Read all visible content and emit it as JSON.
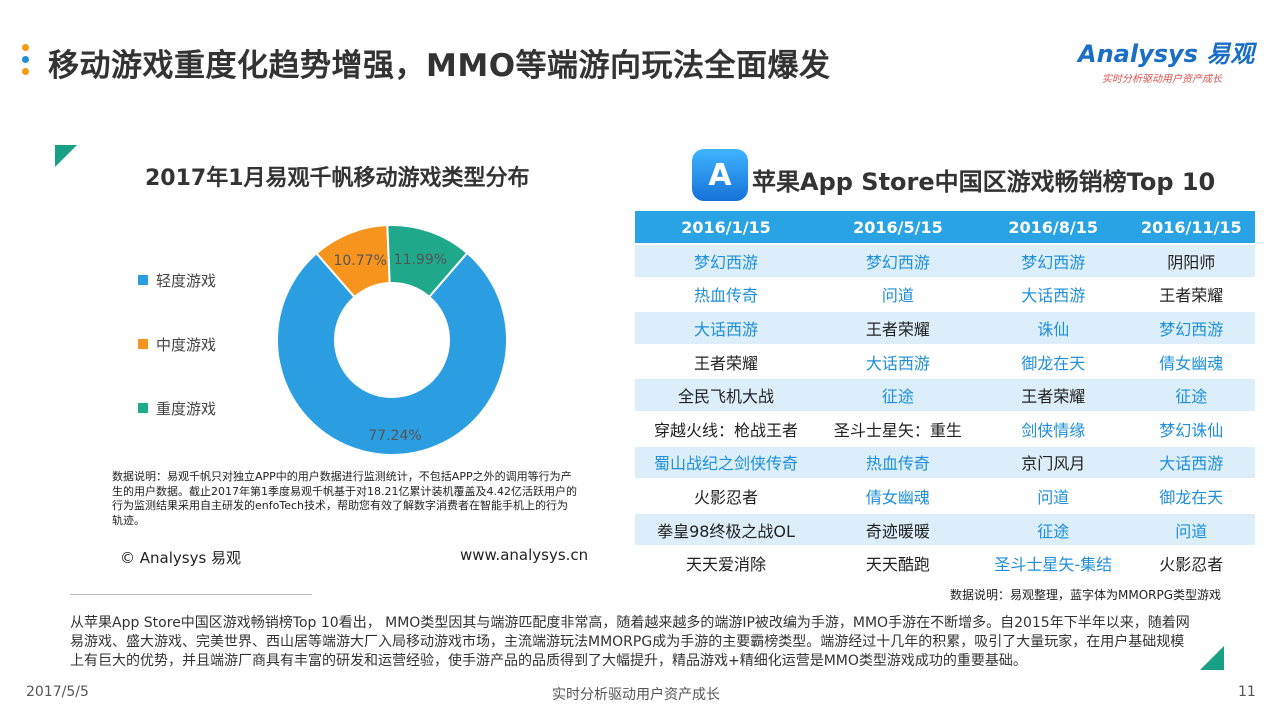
{
  "header": {
    "title": "移动游戏重度化趋势增强，MMO等端游向玩法全面爆发",
    "brand_name": "Analysys 易观",
    "brand_tagline": "实时分析驱动用户资产成长",
    "dot_colors": [
      "#f39c12",
      "#1e8fd8",
      "#f39c12"
    ]
  },
  "chart_data": {
    "type": "pie",
    "title": "2017年1月易观千帆移动游戏类型分布",
    "categories": [
      "轻度游戏",
      "中度游戏",
      "重度游戏"
    ],
    "values": [
      77.24,
      10.77,
      11.99
    ],
    "value_labels": [
      "77.24%",
      "10.77%",
      "11.99%"
    ],
    "colors": [
      "#2a9ee0",
      "#f7941d",
      "#1fa98a"
    ],
    "legend_position": "left"
  },
  "left_panel": {
    "note": "数据说明：易观千帆只对独立APP中的用户数据进行监测统计，不包括APP之外的调用等行为产生的用户数据。截止2017年第1季度易观千帆基于对18.21亿累计装机覆盖及4.42亿活跃用户的行为监测结果采用自主研发的enfoTech技术，帮助您有效了解数字消费者在智能手机上的行为轨迹。",
    "copyright": "© Analysys 易观",
    "website": "www.analysys.cn"
  },
  "ranking": {
    "title": "苹果App Store中国区游戏畅销榜Top 10",
    "headers": [
      "2016/1/15",
      "2016/5/15",
      "2016/8/15",
      "2016/11/15"
    ],
    "rows": [
      [
        {
          "t": "梦幻西游",
          "m": true
        },
        {
          "t": "梦幻西游",
          "m": true
        },
        {
          "t": "梦幻西游",
          "m": true
        },
        {
          "t": "阴阳师",
          "m": false
        }
      ],
      [
        {
          "t": "热血传奇",
          "m": true
        },
        {
          "t": "问道",
          "m": true
        },
        {
          "t": "大话西游",
          "m": true
        },
        {
          "t": "王者荣耀",
          "m": false
        }
      ],
      [
        {
          "t": "大话西游",
          "m": true
        },
        {
          "t": "王者荣耀",
          "m": false
        },
        {
          "t": "诛仙",
          "m": true
        },
        {
          "t": "梦幻西游",
          "m": true
        }
      ],
      [
        {
          "t": "王者荣耀",
          "m": false
        },
        {
          "t": "大话西游",
          "m": true
        },
        {
          "t": "御龙在天",
          "m": true
        },
        {
          "t": "倩女幽魂",
          "m": true
        }
      ],
      [
        {
          "t": "全民飞机大战",
          "m": false
        },
        {
          "t": "征途",
          "m": true
        },
        {
          "t": "王者荣耀",
          "m": false
        },
        {
          "t": "征途",
          "m": true
        }
      ],
      [
        {
          "t": "穿越火线：枪战王者",
          "m": false
        },
        {
          "t": "圣斗士星矢：重生",
          "m": false
        },
        {
          "t": "剑侠情缘",
          "m": true
        },
        {
          "t": "梦幻诛仙",
          "m": true
        }
      ],
      [
        {
          "t": "蜀山战纪之剑侠传奇",
          "m": true
        },
        {
          "t": "热血传奇",
          "m": true
        },
        {
          "t": "京门风月",
          "m": false
        },
        {
          "t": "大话西游",
          "m": true
        }
      ],
      [
        {
          "t": "火影忍者",
          "m": false
        },
        {
          "t": "倩女幽魂",
          "m": true
        },
        {
          "t": "问道",
          "m": true
        },
        {
          "t": "御龙在天",
          "m": true
        }
      ],
      [
        {
          "t": "拳皇98终极之战OL",
          "m": false
        },
        {
          "t": "奇迹暖暖",
          "m": false
        },
        {
          "t": "征途",
          "m": true
        },
        {
          "t": "问道",
          "m": true
        }
      ],
      [
        {
          "t": "天天爱消除",
          "m": false
        },
        {
          "t": "天天酷跑",
          "m": false
        },
        {
          "t": "圣斗士星矢-集结",
          "m": true
        },
        {
          "t": "火影忍者",
          "m": false
        }
      ]
    ],
    "note": "数据说明：易观整理，蓝字体为MMORPG类型游戏"
  },
  "summary": "从苹果App Store中国区游戏畅销榜Top 10看出， MMO类型因其与端游匹配度非常高，随着越来越多的端游IP被改编为手游，MMO手游在不断增多。自2015年下半年以来，随着网易游戏、盛大游戏、完美世界、西山居等端游大厂入局移动游戏市场，主流端游玩法MMORPG成为手游的主要霸榜类型。端游经过十几年的积累，吸引了大量玩家，在用户基础规模上有巨大的优势，并且端游厂商具有丰富的研发和运营经验，使手游产品的品质得到了大幅提升，精品游戏+精细化运营是MMO类型游戏成功的重要基础。",
  "footer": {
    "date": "2017/5/5",
    "tagline": "实时分析驱动用户资产成长",
    "page": "11"
  }
}
